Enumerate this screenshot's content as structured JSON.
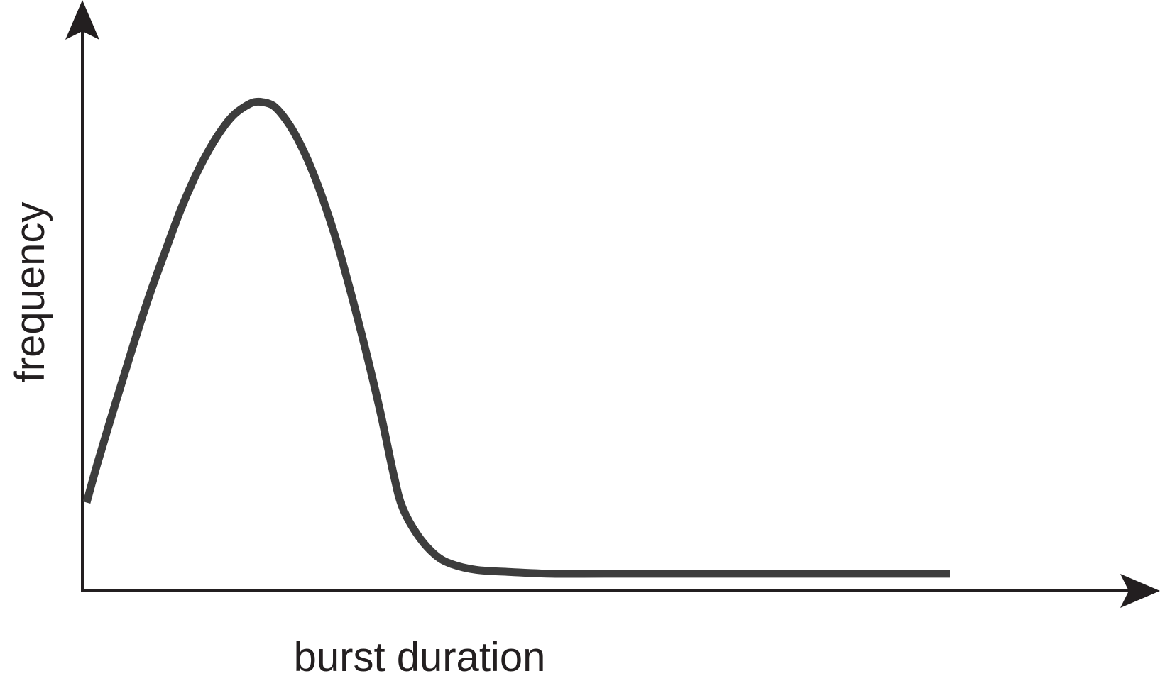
{
  "chart_data": {
    "type": "line",
    "title": "",
    "xlabel": "burst duration",
    "ylabel": "frequency",
    "grid": false,
    "ticks": false,
    "xlim": [
      0,
      100
    ],
    "ylim": [
      0,
      100
    ],
    "colors": {
      "axis": "#231f20",
      "curve": "#3d3d3d"
    },
    "series": [
      {
        "x": [
          0,
          1.3,
          3.4,
          5.4,
          7.3,
          9.2,
          10.9,
          12.6,
          14.2,
          15.7,
          17.0,
          18.3,
          19.4,
          20.4,
          21.6,
          22.8,
          24.1,
          25.6,
          27.2,
          28.9,
          30.6,
          32.4,
          34.1,
          35.6,
          36.6,
          38.4,
          40.4,
          42.3,
          45.1,
          49.2,
          53.9,
          60,
          70,
          80,
          90,
          100
        ],
        "y": [
          15.5,
          22.6,
          33.2,
          43.1,
          52.0,
          60.0,
          66.9,
          72.8,
          77.5,
          81.1,
          83.5,
          85.0,
          85.8,
          85.8,
          85.2,
          83.3,
          80.3,
          75.7,
          69.5,
          61.7,
          52.4,
          41.8,
          30.9,
          20.2,
          14.6,
          9.7,
          6.3,
          4.7,
          3.7,
          3.3,
          3.0,
          3.0,
          3.0,
          3.0,
          3.0,
          3.0
        ]
      }
    ]
  }
}
